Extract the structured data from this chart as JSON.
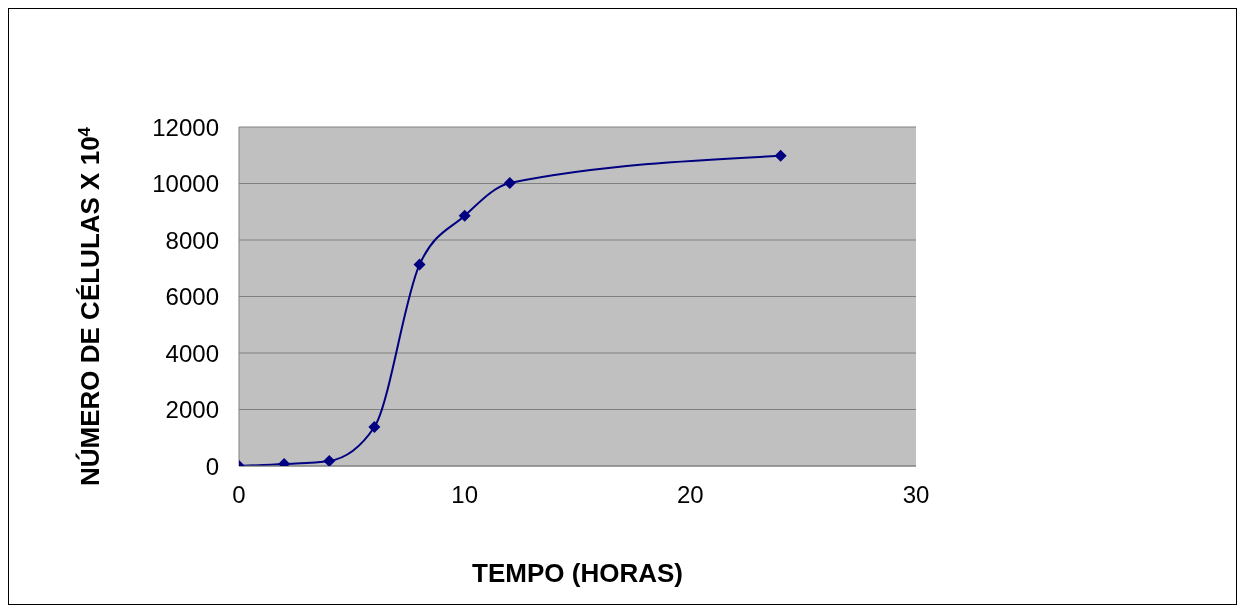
{
  "chart_data": {
    "type": "line",
    "xlabel": "TEMPO (HORAS)",
    "ylabel": "NÚMERO DE CÉLULAS X 10$^{4}$",
    "x": [
      0,
      2,
      4,
      6,
      8,
      10,
      12,
      24
    ],
    "series": [
      {
        "color": "#000080",
        "values": [
          0,
          70,
          180,
          1380,
          7130,
          8860,
          10020,
          10980
        ]
      }
    ],
    "xlim": [
      0,
      30
    ],
    "xticks": [
      0,
      10,
      20,
      30
    ],
    "ylim": [
      0,
      12000
    ],
    "yticks": [
      0,
      2000,
      4000,
      6000,
      8000,
      10000,
      12000
    ],
    "grid": "y",
    "marker": "diamond",
    "line_style": "solid"
  }
}
